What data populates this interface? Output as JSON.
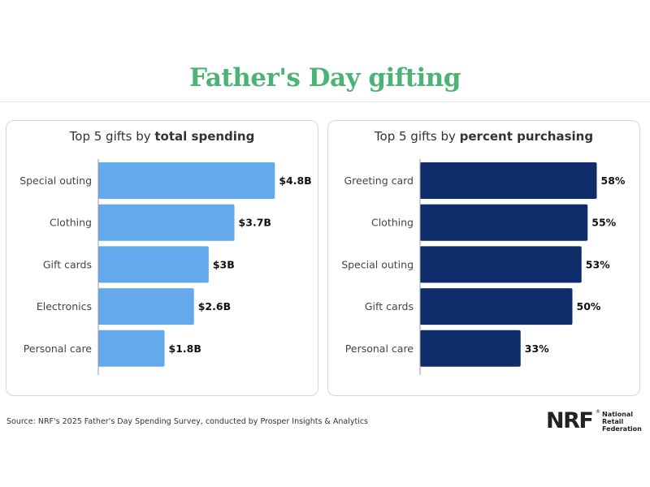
{
  "title": "Father's Day gifting",
  "source": "Source: NRF's 2025 Father's Day Spending Survey, conducted by Prosper Insights & Analytics",
  "logo": {
    "mark": "NRF",
    "registered": "®",
    "name_lines": [
      "National",
      "Retail",
      "Federation"
    ]
  },
  "colors": {
    "title": "#4cb377",
    "spending_bars": "#64a9eb",
    "percent_bars": "#0f2d6b",
    "axis": "#9a9a9a"
  },
  "chart_data": [
    {
      "type": "bar",
      "orientation": "horizontal",
      "title_prefix": "Top 5 gifts by ",
      "title_emphasis": "total spending",
      "categories": [
        "Special outing",
        "Clothing",
        "Gift cards",
        "Electronics",
        "Personal care"
      ],
      "values": [
        4.8,
        3.7,
        3.0,
        2.6,
        1.8
      ],
      "value_labels": [
        "$4.8B",
        "$3.7B",
        "$3B",
        "$2.6B",
        "$1.8B"
      ],
      "unit": "billion USD",
      "xlim": [
        0,
        5.3
      ],
      "grid": false
    },
    {
      "type": "bar",
      "orientation": "horizontal",
      "title_prefix": "Top 5 gifts by ",
      "title_emphasis": "percent purchasing",
      "categories": [
        "Greeting card",
        "Clothing",
        "Special outing",
        "Gift cards",
        "Personal care"
      ],
      "values": [
        58,
        55,
        53,
        50,
        33
      ],
      "value_labels": [
        "58%",
        "55%",
        "53%",
        "50%",
        "33%"
      ],
      "unit": "percent",
      "xlim": [
        0,
        64
      ],
      "grid": false
    }
  ]
}
